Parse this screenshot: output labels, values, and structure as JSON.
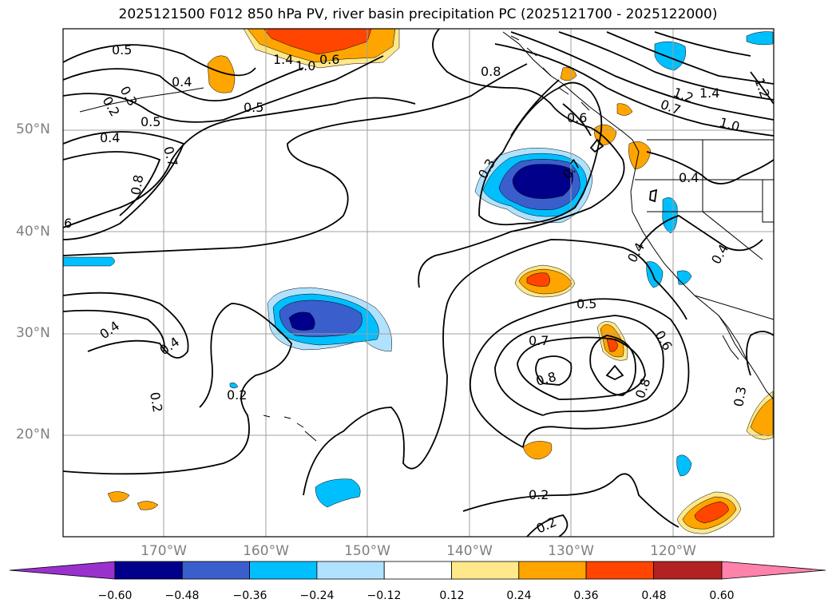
{
  "title": "2025121500 F012 850 hPa PV, river basin precipitation PC (2025121700 - 2025122000)",
  "lat_labels": [
    "50°N",
    "40°N",
    "30°N",
    "20°N"
  ],
  "lon_labels": [
    "170°W",
    "160°W",
    "150°W",
    "140°W",
    "130°W",
    "120°W"
  ],
  "colorbar": {
    "ticks": [
      "−0.60",
      "−0.48",
      "−0.36",
      "−0.24",
      "−0.12",
      "0.12",
      "0.24",
      "0.36",
      "0.48",
      "0.60"
    ],
    "colors": [
      "#9932cc",
      "#00008b",
      "#3a5fcd",
      "#00bfff",
      "#b0e2ff",
      "#ffffff",
      "#ffe88a",
      "#ffa500",
      "#ff4500",
      "#b22222",
      "#ff82ab"
    ]
  },
  "contour_labels": [
    "0.5",
    "0.4",
    "0.3",
    "0.2",
    "1.4",
    "1.0",
    "0.6",
    "0.5",
    "0.5",
    "0.4",
    "0.7",
    "0.8",
    "6",
    "0.8",
    "0.6",
    "0.3",
    "0.7",
    "1.2",
    "1.4",
    "0.7",
    "1.0",
    "1.2",
    "0.4",
    "0.4",
    "0.4",
    "0.4",
    "0.4",
    "0.2",
    "0.2",
    "0.5",
    "0.7",
    "0.8",
    "0.6",
    "0.8",
    "0.2",
    "0.2",
    "0.3"
  ],
  "colors": {
    "frame": "#000000",
    "grid": "#a0a0a0",
    "contour": "#000000",
    "axis_label": "#7f7f7f"
  }
}
